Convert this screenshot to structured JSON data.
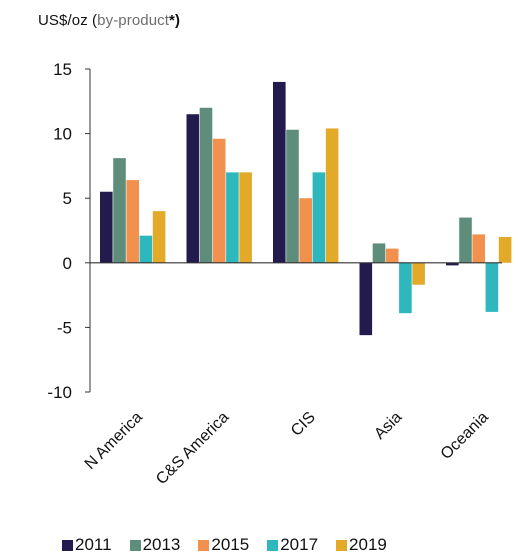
{
  "chart_data": {
    "type": "bar",
    "ylabel_prefix": "US$/oz (",
    "ylabel_muted": "by-product",
    "ylabel_suffix": "*)",
    "categories": [
      "N America",
      "C&S America",
      "CIS",
      "Asia",
      "Oceania"
    ],
    "ylim": [
      -10,
      15
    ],
    "yticks": [
      15,
      10,
      5,
      0,
      -5,
      -10
    ],
    "series": [
      {
        "name": "2011",
        "color": "#231b4d",
        "values": [
          5.5,
          11.5,
          14.0,
          -5.6,
          -0.2
        ]
      },
      {
        "name": "2013",
        "color": "#5e8d7b",
        "values": [
          8.1,
          12.0,
          10.3,
          1.5,
          3.5
        ]
      },
      {
        "name": "2015",
        "color": "#f1914d",
        "values": [
          6.4,
          9.6,
          5.0,
          1.1,
          2.2
        ]
      },
      {
        "name": "2017",
        "color": "#2eb8bd",
        "values": [
          2.1,
          7.0,
          7.0,
          -3.9,
          -3.8
        ]
      },
      {
        "name": "2019",
        "color": "#e3aa2a",
        "values": [
          4.0,
          7.0,
          10.4,
          -1.7,
          2.0
        ]
      }
    ],
    "legend_position": "bottom",
    "grid": false
  }
}
